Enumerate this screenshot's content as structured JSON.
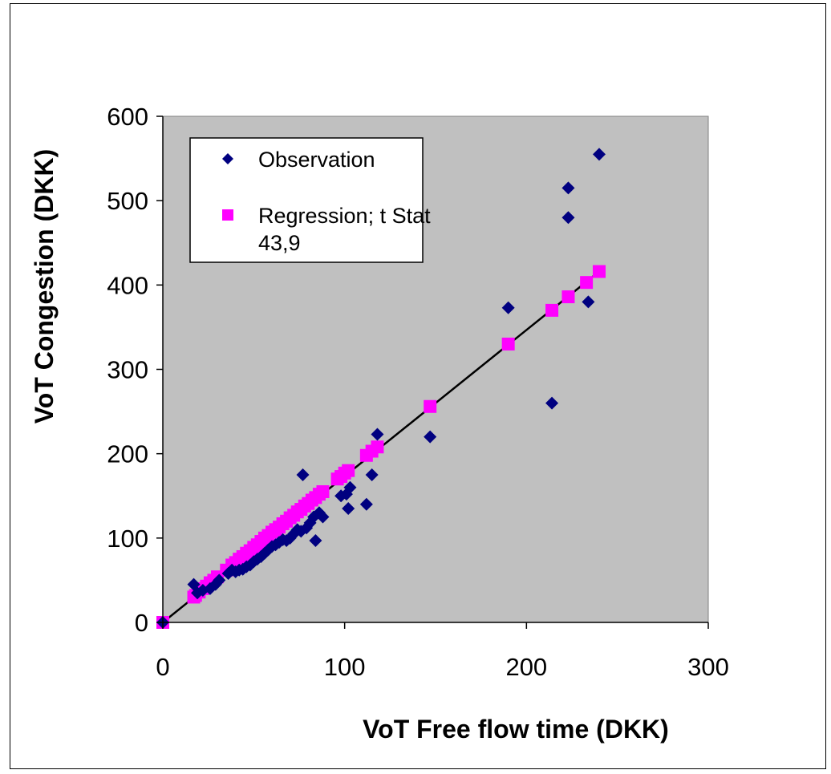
{
  "chart_data": {
    "type": "scatter",
    "xlabel": "VoT Free flow time (DKK)",
    "ylabel": "VoT Congestion (DKK)",
    "xlim": [
      0,
      300
    ],
    "ylim": [
      0,
      600
    ],
    "x_ticks": [
      "0",
      "100",
      "200",
      "300"
    ],
    "y_ticks": [
      "0",
      "100",
      "200",
      "300",
      "400",
      "500",
      "600"
    ],
    "grid": false,
    "plot_background": "#c0c0c0",
    "legend_position": "top-left",
    "series": [
      {
        "name": "Observation",
        "marker": "diamond",
        "color": "#000080",
        "points": [
          [
            0,
            0
          ],
          [
            17,
            45
          ],
          [
            19,
            35
          ],
          [
            22,
            38
          ],
          [
            26,
            40
          ],
          [
            29,
            45
          ],
          [
            31,
            50
          ],
          [
            36,
            58
          ],
          [
            38,
            62
          ],
          [
            40,
            60
          ],
          [
            42,
            62
          ],
          [
            44,
            63
          ],
          [
            46,
            66
          ],
          [
            48,
            68
          ],
          [
            50,
            72
          ],
          [
            52,
            75
          ],
          [
            54,
            78
          ],
          [
            56,
            82
          ],
          [
            58,
            86
          ],
          [
            60,
            90
          ],
          [
            62,
            92
          ],
          [
            64,
            95
          ],
          [
            66,
            98
          ],
          [
            68,
            97
          ],
          [
            70,
            100
          ],
          [
            72,
            105
          ],
          [
            74,
            110
          ],
          [
            76,
            108
          ],
          [
            77,
            175
          ],
          [
            79,
            112
          ],
          [
            81,
            118
          ],
          [
            83,
            125
          ],
          [
            84,
            97
          ],
          [
            86,
            130
          ],
          [
            88,
            125
          ],
          [
            98,
            150
          ],
          [
            101,
            152
          ],
          [
            102,
            135
          ],
          [
            103,
            160
          ],
          [
            112,
            140
          ],
          [
            115,
            175
          ],
          [
            118,
            223
          ],
          [
            147,
            220
          ],
          [
            190,
            373
          ],
          [
            214,
            260
          ],
          [
            223,
            515
          ],
          [
            223,
            480
          ],
          [
            234,
            380
          ],
          [
            240,
            555
          ]
        ]
      },
      {
        "name": "Regression; t Stat 43,9",
        "marker": "square",
        "color": "#ff00ff",
        "points": [
          [
            0,
            0
          ],
          [
            17,
            30
          ],
          [
            18,
            32
          ],
          [
            20,
            36
          ],
          [
            22,
            40
          ],
          [
            24,
            43
          ],
          [
            26,
            47
          ],
          [
            28,
            50
          ],
          [
            30,
            54
          ],
          [
            35,
            62
          ],
          [
            38,
            68
          ],
          [
            40,
            71
          ],
          [
            42,
            75
          ],
          [
            44,
            78
          ],
          [
            46,
            82
          ],
          [
            48,
            85
          ],
          [
            50,
            89
          ],
          [
            52,
            92
          ],
          [
            54,
            96
          ],
          [
            56,
            100
          ],
          [
            58,
            103
          ],
          [
            60,
            107
          ],
          [
            62,
            110
          ],
          [
            64,
            113
          ],
          [
            66,
            117
          ],
          [
            68,
            120
          ],
          [
            70,
            124
          ],
          [
            72,
            127
          ],
          [
            74,
            131
          ],
          [
            76,
            134
          ],
          [
            78,
            138
          ],
          [
            80,
            141
          ],
          [
            82,
            145
          ],
          [
            84,
            148
          ],
          [
            86,
            152
          ],
          [
            88,
            155
          ],
          [
            96,
            170
          ],
          [
            98,
            173
          ],
          [
            100,
            177
          ],
          [
            102,
            180
          ],
          [
            112,
            198
          ],
          [
            115,
            203
          ],
          [
            118,
            208
          ],
          [
            147,
            256
          ],
          [
            190,
            330
          ],
          [
            214,
            370
          ],
          [
            223,
            386
          ],
          [
            233,
            403
          ],
          [
            240,
            416
          ]
        ]
      }
    ],
    "trendline": {
      "from": [
        0,
        0
      ],
      "to": [
        240,
        416
      ],
      "color": "#000000"
    },
    "legend": {
      "entries": [
        {
          "marker": "diamond",
          "color": "#000080",
          "lines": [
            "Observation"
          ]
        },
        {
          "marker": "square",
          "color": "#ff00ff",
          "lines": [
            "Regression; t Stat",
            "43,9"
          ]
        }
      ]
    }
  }
}
